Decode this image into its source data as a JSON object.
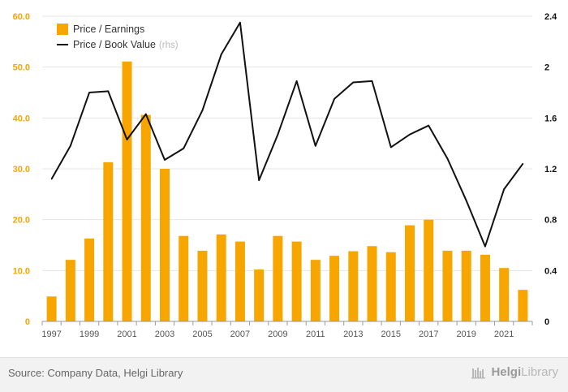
{
  "chart_data": {
    "type": "bar+line",
    "x": [
      1997,
      1998,
      1999,
      2000,
      2001,
      2002,
      2003,
      2004,
      2005,
      2006,
      2007,
      2008,
      2009,
      2010,
      2011,
      2012,
      2013,
      2014,
      2015,
      2016,
      2017,
      2018,
      2019,
      2020,
      2021,
      2022
    ],
    "x_tick_labels": [
      "1997",
      "1999",
      "2001",
      "2003",
      "2005",
      "2007",
      "2009",
      "2011",
      "2013",
      "2015",
      "2017",
      "2019",
      "2021"
    ],
    "y_left_ticks": [
      "0",
      "10.0",
      "20.0",
      "30.0",
      "40.0",
      "50.0",
      "60.0"
    ],
    "y_right_ticks": [
      "0",
      "0.4",
      "0.8",
      "1.2",
      "1.6",
      "2",
      "2.4"
    ],
    "y_left_range": [
      0,
      60
    ],
    "y_right_range": [
      0,
      2.4
    ],
    "series": [
      {
        "name": "Price / Earnings",
        "kind": "bar",
        "axis": "left",
        "color": "#f7a600",
        "values": [
          4.9,
          12.1,
          16.3,
          31.3,
          51.1,
          40.6,
          30.0,
          16.8,
          13.9,
          17.1,
          15.7,
          10.2,
          16.8,
          15.7,
          12.1,
          12.9,
          13.8,
          14.8,
          13.6,
          18.9,
          20.0,
          13.9,
          13.9,
          13.1,
          10.5,
          6.2
        ]
      },
      {
        "name": "Price / Book Value",
        "kind": "line",
        "axis": "right",
        "color": "#111111",
        "values": [
          1.12,
          1.38,
          1.8,
          1.81,
          1.43,
          1.63,
          1.27,
          1.36,
          1.66,
          2.1,
          2.35,
          1.11,
          1.47,
          1.89,
          1.38,
          1.75,
          1.88,
          1.89,
          1.37,
          1.47,
          1.54,
          1.28,
          0.95,
          0.59,
          1.04,
          1.24
        ]
      }
    ],
    "legend": {
      "position": "top-left",
      "items": [
        {
          "label": "Price / Earnings",
          "suffix": ""
        },
        {
          "label": "Price / Book Value",
          "suffix": "(rhs)"
        }
      ]
    },
    "grid": true,
    "left_axis_color": "#f7a600",
    "right_axis_color": "#111111"
  },
  "footer": {
    "source": "Source: Company Data, Helgi Library",
    "brand_prefix": "Helgi",
    "brand_suffix": "Library"
  }
}
